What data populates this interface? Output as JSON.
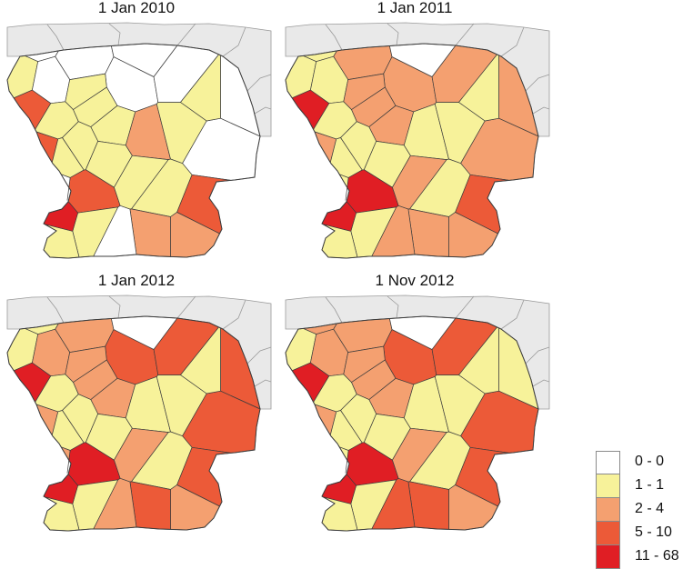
{
  "panels": [
    {
      "title": "1 Jan 2010",
      "fills": [
        0,
        1,
        0,
        0,
        0,
        0,
        3,
        1,
        1,
        1,
        1,
        1,
        1,
        1,
        3,
        2,
        1,
        0,
        0,
        0,
        1,
        1,
        1,
        3,
        1,
        1,
        4,
        3,
        2,
        2,
        0,
        0
      ]
    },
    {
      "title": "1 Jan 2011",
      "fills": [
        1,
        1,
        2,
        1,
        2,
        0,
        4,
        1,
        2,
        2,
        2,
        1,
        1,
        1,
        2,
        1,
        1,
        2,
        2,
        2,
        1,
        2,
        1,
        4,
        1,
        1,
        4,
        3,
        2,
        2,
        2,
        1
      ]
    },
    {
      "title": "1 Jan 2012",
      "fills": [
        1,
        1,
        2,
        2,
        3,
        0,
        4,
        1,
        2,
        2,
        2,
        1,
        1,
        1,
        2,
        1,
        1,
        3,
        3,
        3,
        1,
        2,
        1,
        4,
        1,
        1,
        4,
        3,
        2,
        3,
        2,
        2
      ]
    },
    {
      "title": "1 Nov 2012",
      "fills": [
        2,
        1,
        2,
        2,
        3,
        0,
        4,
        1,
        2,
        2,
        2,
        1,
        1,
        1,
        2,
        1,
        1,
        3,
        1,
        3,
        1,
        2,
        1,
        4,
        1,
        1,
        4,
        3,
        2,
        3,
        3,
        1
      ]
    }
  ],
  "legend": {
    "classes": [
      {
        "label": "0 - 0",
        "color": "#ffffff"
      },
      {
        "label": "1 - 1",
        "color": "#f7f29a"
      },
      {
        "label": "2 - 4",
        "color": "#f4a070"
      },
      {
        "label": "5 - 10",
        "color": "#ec5a38"
      },
      {
        "label": "11 - 68",
        "color": "#e01e24"
      }
    ]
  },
  "colors": {
    "outside_region": "#e9e9e9",
    "boundary": "#3c3c3c",
    "neighbor_boundary": "#9a9a9a"
  }
}
